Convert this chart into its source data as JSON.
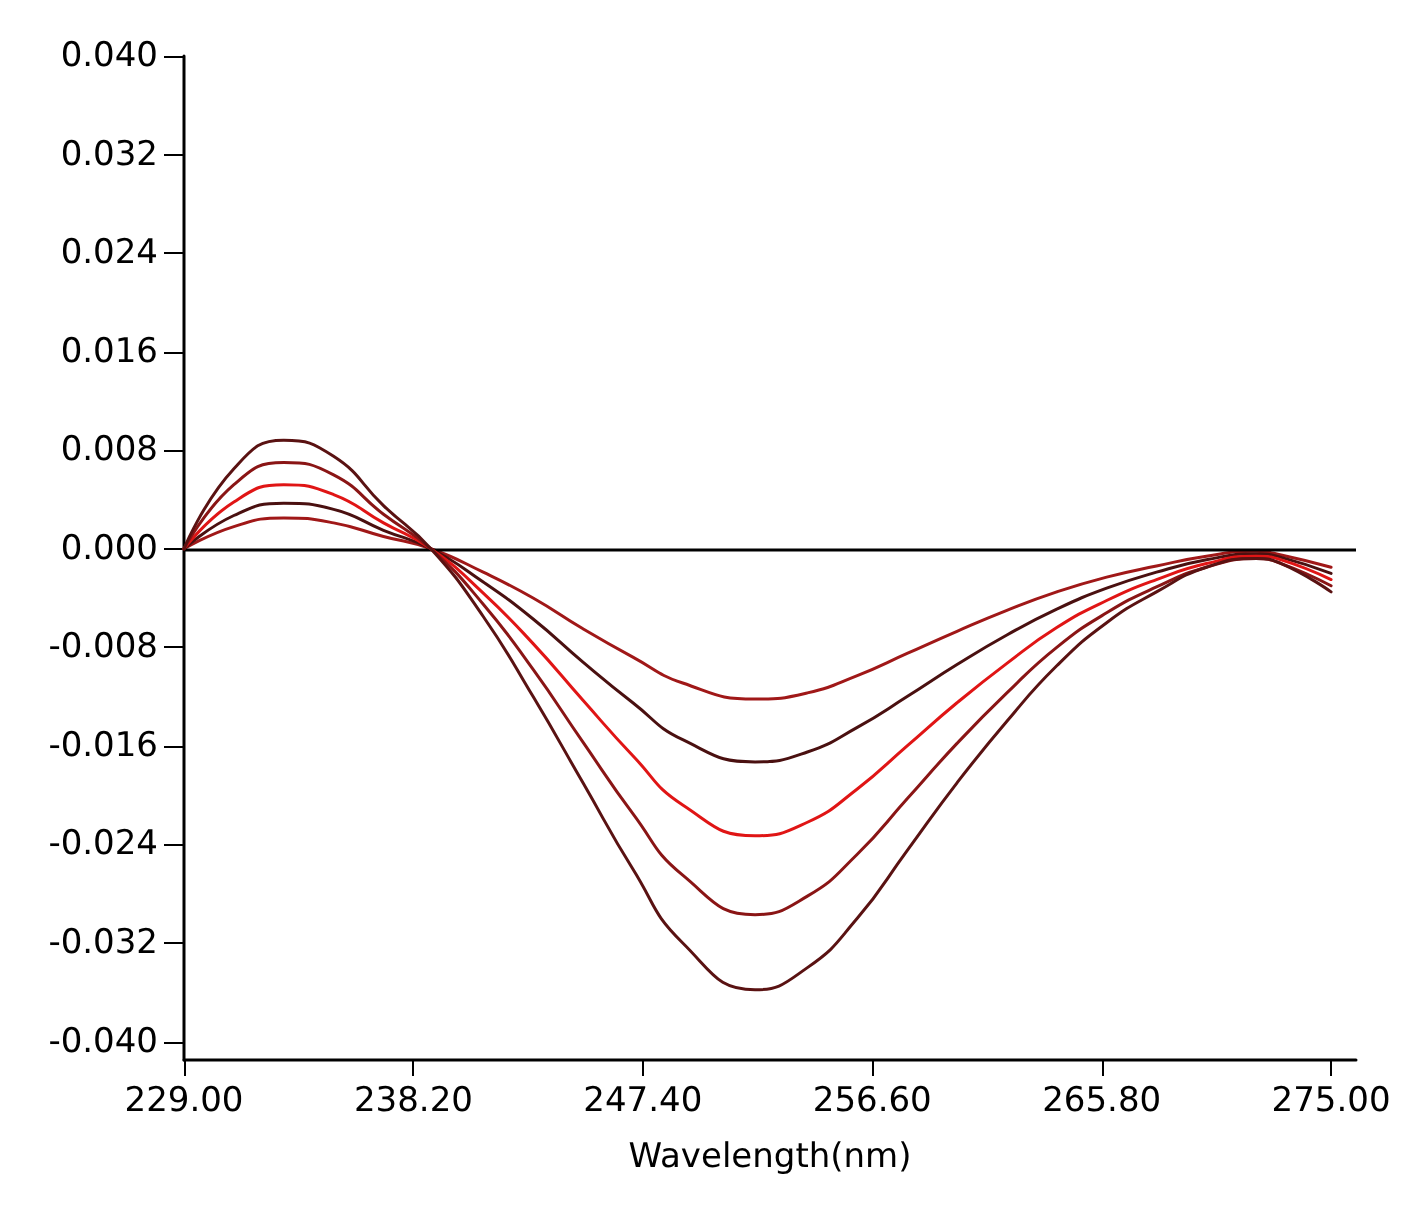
{
  "chart_data": {
    "type": "line",
    "xlabel": "Wavelength(nm)",
    "x": [
      229,
      231,
      233,
      235,
      237,
      238.9,
      241,
      243,
      245,
      247,
      249,
      251.9,
      254,
      256,
      258,
      260,
      262,
      264,
      266,
      268,
      270,
      272,
      273,
      275
    ],
    "series": [
      {
        "color": "#a01818",
        "values": [
          0,
          0.0018,
          0.0025,
          0.0021,
          0.001,
          0,
          -0.0019,
          -0.004,
          -0.0065,
          -0.0088,
          -0.0109,
          -0.0122,
          -0.0117,
          -0.0103,
          -0.0085,
          -0.0067,
          -0.005,
          -0.0035,
          -0.0023,
          -0.0014,
          -0.0006,
          -0.0002,
          -0.0005,
          -0.0015
        ]
      },
      {
        "color": "#4a1010",
        "values": [
          0,
          0.0027,
          0.0037,
          0.0032,
          0.0015,
          0,
          -0.0027,
          -0.0057,
          -0.0092,
          -0.0125,
          -0.0155,
          -0.0173,
          -0.0165,
          -0.0145,
          -0.012,
          -0.0094,
          -0.007,
          -0.0049,
          -0.0032,
          -0.0019,
          -0.0009,
          -0.0004,
          -0.0007,
          -0.002
        ]
      },
      {
        "color": "#e01515",
        "values": [
          0,
          0.0038,
          0.0052,
          0.0044,
          0.0021,
          0,
          -0.0036,
          -0.0077,
          -0.0123,
          -0.0168,
          -0.0208,
          -0.0233,
          -0.0222,
          -0.0195,
          -0.016,
          -0.0125,
          -0.0093,
          -0.0064,
          -0.0042,
          -0.0025,
          -0.0012,
          -0.0006,
          -0.0009,
          -0.0025
        ]
      },
      {
        "color": "#8a1515",
        "values": [
          0,
          0.0052,
          0.007,
          0.006,
          0.0028,
          0,
          -0.0045,
          -0.0098,
          -0.0157,
          -0.0215,
          -0.0265,
          -0.0297,
          -0.0282,
          -0.0248,
          -0.0203,
          -0.0158,
          -0.0117,
          -0.008,
          -0.0052,
          -0.0031,
          -0.0015,
          -0.0008,
          -0.0012,
          -0.003
        ]
      },
      {
        "color": "#5a1212",
        "values": [
          0,
          0.0065,
          0.0088,
          0.0075,
          0.0035,
          0,
          -0.0055,
          -0.012,
          -0.019,
          -0.026,
          -0.032,
          -0.0358,
          -0.034,
          -0.03,
          -0.0245,
          -0.019,
          -0.014,
          -0.0095,
          -0.006,
          -0.0035,
          -0.0015,
          -0.0008,
          -0.0012,
          -0.0035
        ]
      }
    ],
    "xlim": [
      229,
      276
    ],
    "xticks": [
      {
        "value": 229,
        "label": "229.00"
      },
      {
        "value": 238.2,
        "label": "238.20"
      },
      {
        "value": 247.4,
        "label": "247.40"
      },
      {
        "value": 256.6,
        "label": "256.60"
      },
      {
        "value": 265.8,
        "label": "265.80"
      },
      {
        "value": 275,
        "label": "275.00"
      }
    ],
    "ylim": [
      -0.0415,
      0.04
    ],
    "yticks": [
      {
        "value": 0.04,
        "label": "0.040"
      },
      {
        "value": 0.032,
        "label": "0.032"
      },
      {
        "value": 0.024,
        "label": "0.024"
      },
      {
        "value": 0.016,
        "label": "0.016"
      },
      {
        "value": 0.008,
        "label": "0.008"
      },
      {
        "value": 0,
        "label": "0.000"
      },
      {
        "value": -0.008,
        "label": "-0.008"
      },
      {
        "value": -0.016,
        "label": "-0.016"
      },
      {
        "value": -0.024,
        "label": "-0.024"
      },
      {
        "value": -0.032,
        "label": "-0.032"
      },
      {
        "value": -0.04,
        "label": "-0.040"
      }
    ],
    "ref_lines": [
      {
        "axis": "y",
        "value": 0,
        "color": "#000000",
        "line_style": "solid"
      }
    ],
    "grid": false,
    "marker": "none",
    "line_style": "solid"
  }
}
